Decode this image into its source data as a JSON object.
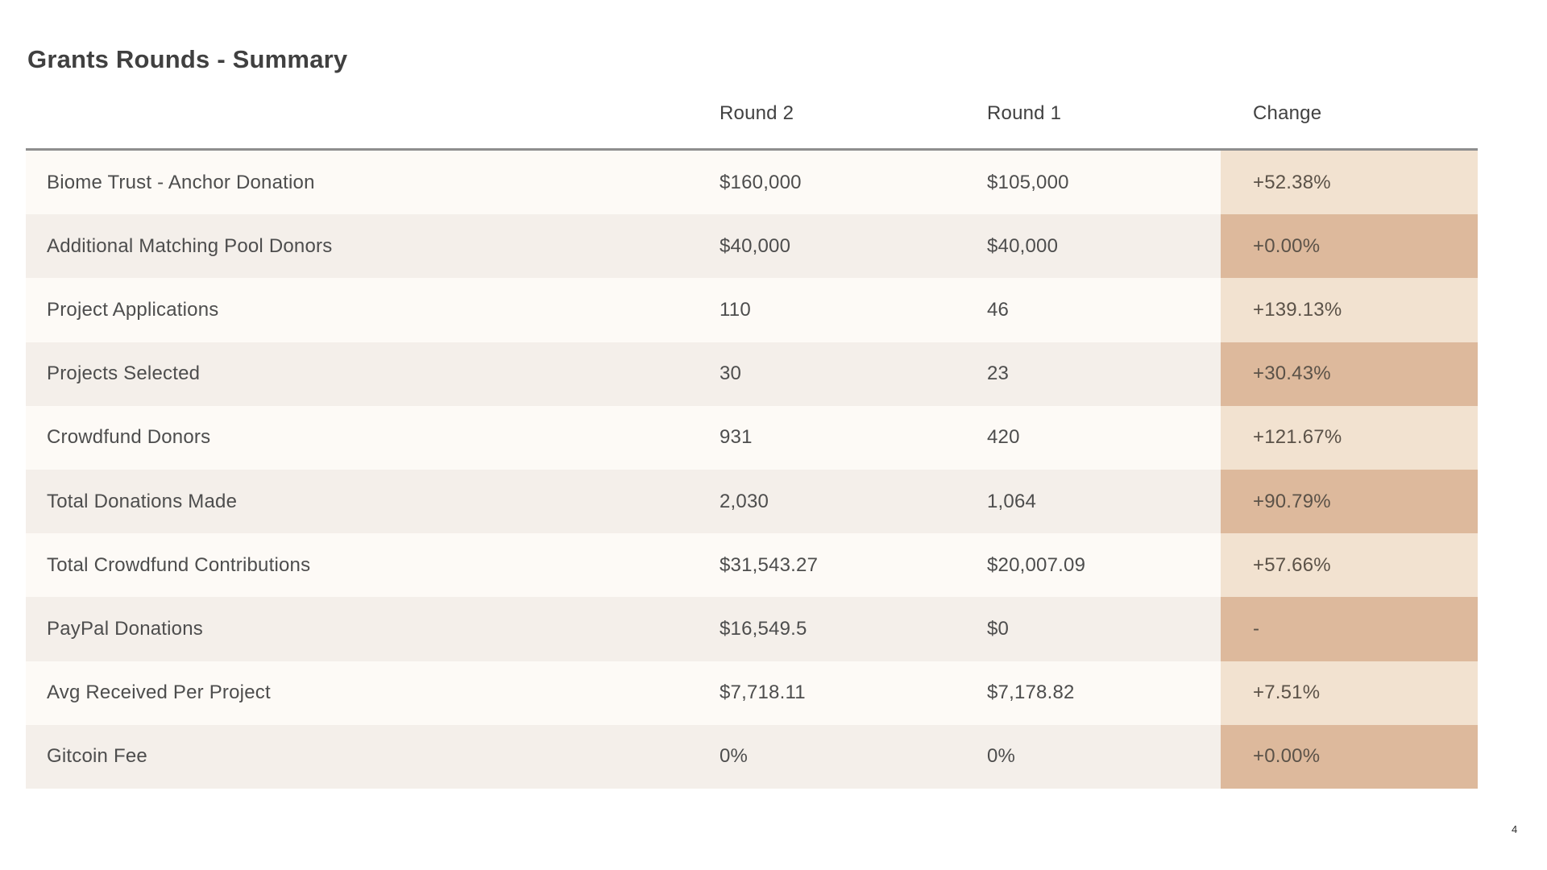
{
  "page": {
    "title": "Grants Rounds - Summary",
    "page_number": "4"
  },
  "table": {
    "header": {
      "metric": "",
      "round2": "Round 2",
      "round1": "Round 1",
      "change": "Change"
    },
    "rows": [
      {
        "label": "Biome Trust - Anchor Donation",
        "round2": "$160,000",
        "round1": "$105,000",
        "change": "+52.38%"
      },
      {
        "label": "Additional Matching Pool Donors",
        "round2": "$40,000",
        "round1": "$40,000",
        "change": "+0.00%"
      },
      {
        "label": "Project Applications",
        "round2": "110",
        "round1": "46",
        "change": "+139.13%"
      },
      {
        "label": "Projects Selected",
        "round2": "30",
        "round1": "23",
        "change": "+30.43%"
      },
      {
        "label": "Crowdfund Donors",
        "round2": "931",
        "round1": "420",
        "change": "+121.67%"
      },
      {
        "label": "Total Donations Made",
        "round2": "2,030",
        "round1": "1,064",
        "change": "+90.79%"
      },
      {
        "label": "Total Crowdfund Contributions",
        "round2": "$31,543.27",
        "round1": "$20,007.09",
        "change": "+57.66%"
      },
      {
        "label": "PayPal Donations",
        "round2": "$16,549.5",
        "round1": "$0",
        "change": "-"
      },
      {
        "label": "Avg Received Per Project",
        "round2": "$7,718.11",
        "round1": "$7,178.82",
        "change": "+7.51%"
      },
      {
        "label": "Gitcoin Fee",
        "round2": "0%",
        "round1": "0%",
        "change": "+0.00%"
      }
    ]
  },
  "colors": {
    "row_light": "#fdfaf6",
    "row_dark": "#f4efea",
    "change_light": "#f2e2d0",
    "change_dark": "#ddb99c",
    "change_text": "#5b5248",
    "header_border": "#8e8e8e",
    "title_text": "#404040",
    "body_text": "#4d4d4d"
  }
}
